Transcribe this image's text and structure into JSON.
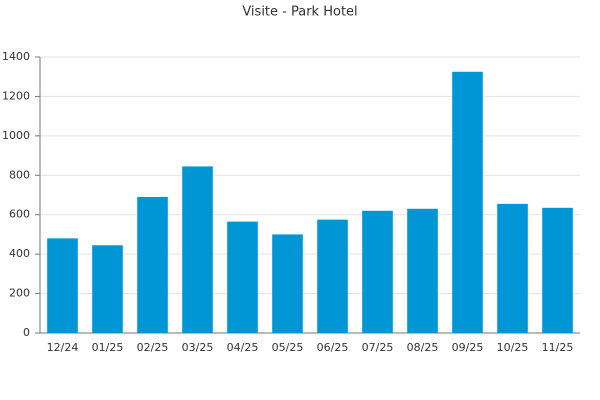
{
  "chart_data": {
    "type": "bar",
    "title": "Visite - Park Hotel",
    "categories": [
      "12/24",
      "01/25",
      "02/25",
      "03/25",
      "04/25",
      "05/25",
      "06/25",
      "07/25",
      "08/25",
      "09/25",
      "10/25",
      "11/25"
    ],
    "values": [
      480,
      445,
      690,
      845,
      565,
      500,
      575,
      620,
      630,
      1325,
      655,
      635
    ],
    "color": "#0095d5",
    "ylim": [
      0,
      1400
    ],
    "yticks": [
      0,
      200,
      400,
      600,
      800,
      1000,
      1200,
      1400
    ],
    "grid": true
  }
}
